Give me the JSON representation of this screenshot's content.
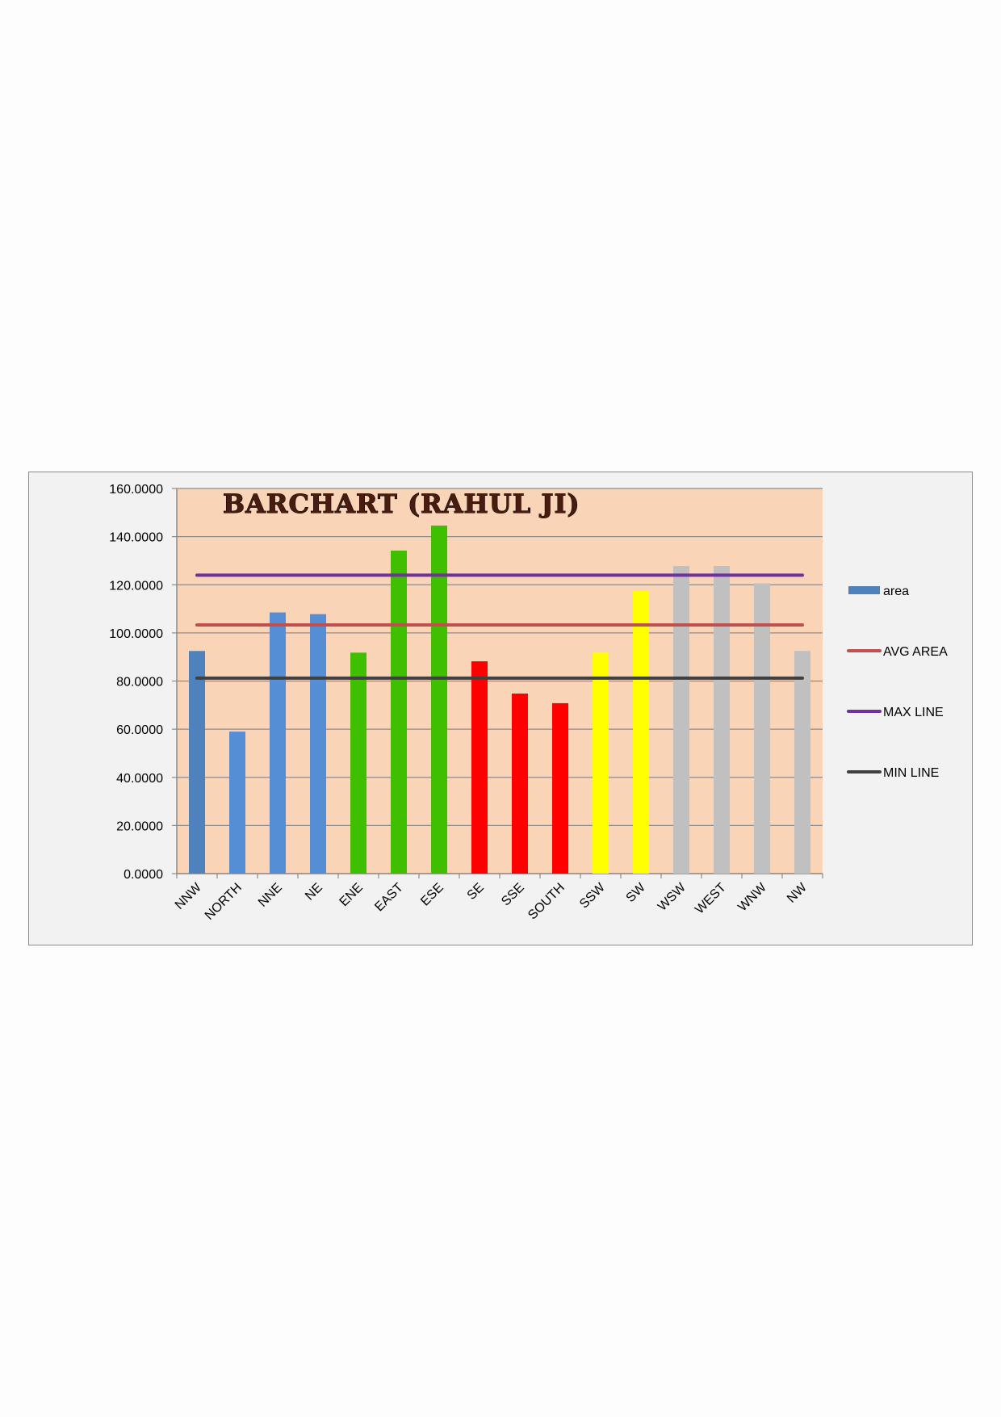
{
  "chart_data": {
    "type": "bar",
    "title": "BARCHART (RAHUL JI)",
    "xlabel": "",
    "ylabel": "",
    "ylim": [
      0,
      160
    ],
    "y_ticks": [
      "0.0000",
      "20.0000",
      "40.0000",
      "60.0000",
      "80.0000",
      "100.0000",
      "120.0000",
      "140.0000",
      "160.0000"
    ],
    "grid": true,
    "legend_position": "right",
    "plot_background": "#fad4b7",
    "frame_background": "#f2f2f2",
    "categories": [
      "NNW",
      "NORTH",
      "NNE",
      "NE",
      "ENE",
      "EAST",
      "ESE",
      "SE",
      "SSE",
      "SOUTH",
      "SSW",
      "SW",
      "WSW",
      "WEST",
      "WNW",
      "NW"
    ],
    "series": [
      {
        "name": "area",
        "kind": "bar",
        "legend_color": "#4f81bd",
        "values": [
          92.5,
          59,
          108.5,
          107.8,
          91.8,
          134.2,
          144.6,
          88.2,
          74.8,
          70.8,
          91.8,
          117.5,
          127.8,
          127.8,
          120.6,
          92.5
        ],
        "colors": [
          "#4f81bd",
          "#558ed5",
          "#558ed5",
          "#558ed5",
          "#3fbf00",
          "#3fbf00",
          "#3fbf00",
          "#ff0000",
          "#ff0000",
          "#ff0000",
          "#ffff00",
          "#ffff00",
          "#c0c0c0",
          "#c0c0c0",
          "#c0c0c0",
          "#c0c0c0"
        ]
      },
      {
        "name": "AVG AREA",
        "kind": "line",
        "color": "#c0504d",
        "value": 103.3
      },
      {
        "name": "MAX LINE",
        "kind": "line",
        "color": "#7030a0",
        "value": 124
      },
      {
        "name": "MIN LINE",
        "kind": "line",
        "color": "#404040",
        "value": 81.2
      }
    ]
  }
}
